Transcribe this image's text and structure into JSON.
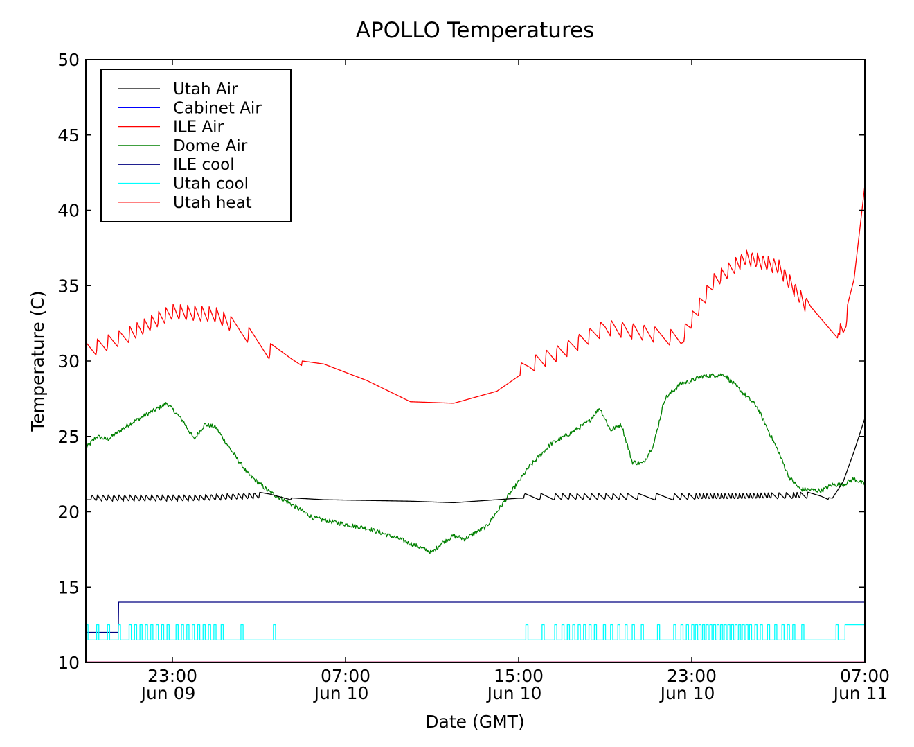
{
  "chart_data": {
    "type": "line",
    "title": "APOLLO Temperatures",
    "xlabel": "Date (GMT)",
    "ylabel": "Temperature (C)",
    "ylim": [
      10,
      50
    ],
    "xlim": [
      "2012-06-09T19:00",
      "2012-06-11T07:00"
    ],
    "yticks": [
      10,
      15,
      20,
      25,
      30,
      35,
      40,
      45,
      50
    ],
    "xticks": [
      {
        "t": "2012-06-09T23:00",
        "time": "23:00",
        "date": "Jun 09"
      },
      {
        "t": "2012-06-10T07:00",
        "time": "07:00",
        "date": "Jun 10"
      },
      {
        "t": "2012-06-10T15:00",
        "time": "15:00",
        "date": "Jun 10"
      },
      {
        "t": "2012-06-10T23:00",
        "time": "23:00",
        "date": "Jun 10"
      },
      {
        "t": "2012-06-11T07:00",
        "time": "07:00",
        "date": "Jun 11"
      }
    ],
    "grid": false,
    "legend_position": "upper-left",
    "series": [
      {
        "name": "Utah Air",
        "color": "#000000",
        "style": "sawtooth",
        "x": [
          "2012-06-09T19:00",
          "2012-06-10T00:00",
          "2012-06-10T03:30",
          "2012-06-10T06:00",
          "2012-06-10T10:00",
          "2012-06-10T12:00",
          "2012-06-10T15:00",
          "2012-06-10T20:00",
          "2012-06-11T01:00",
          "2012-06-11T05:00",
          "2012-06-11T05:30",
          "2012-06-11T06:00",
          "2012-06-11T06:30",
          "2012-06-11T07:00"
        ],
        "y": [
          20.8,
          20.8,
          21.0,
          20.8,
          20.7,
          20.6,
          20.9,
          20.9,
          20.9,
          21.0,
          20.9,
          22.0,
          24.0,
          26.2
        ],
        "events": [
          "2012-06-09T19:15",
          "2012-06-09T19:30",
          "2012-06-09T19:45",
          "2012-06-09T20:00",
          "2012-06-09T20:15",
          "2012-06-09T20:30",
          "2012-06-09T20:45",
          "2012-06-09T21:00",
          "2012-06-09T21:15",
          "2012-06-09T21:30",
          "2012-06-09T21:45",
          "2012-06-09T22:00",
          "2012-06-09T22:15",
          "2012-06-09T22:30",
          "2012-06-09T22:45",
          "2012-06-09T23:00",
          "2012-06-09T23:15",
          "2012-06-09T23:30",
          "2012-06-09T23:45",
          "2012-06-10T00:00",
          "2012-06-10T00:15",
          "2012-06-10T00:30",
          "2012-06-10T00:45",
          "2012-06-10T01:00",
          "2012-06-10T01:15",
          "2012-06-10T01:30",
          "2012-06-10T01:45",
          "2012-06-10T02:00",
          "2012-06-10T02:15",
          "2012-06-10T02:30",
          "2012-06-10T02:45",
          "2012-06-10T03:00",
          "2012-06-10T15:15",
          "2012-06-10T16:00",
          "2012-06-10T16:40",
          "2012-06-10T17:00",
          "2012-06-10T17:20",
          "2012-06-10T17:40",
          "2012-06-10T18:00",
          "2012-06-10T18:20",
          "2012-06-10T18:40",
          "2012-06-10T19:00",
          "2012-06-10T19:20",
          "2012-06-10T19:40",
          "2012-06-10T20:00",
          "2012-06-10T20:30",
          "2012-06-10T21:20",
          "2012-06-10T22:10",
          "2012-06-10T22:30",
          "2012-06-10T22:50",
          "2012-06-10T23:10",
          "2012-06-10T23:20",
          "2012-06-10T23:30",
          "2012-06-10T23:40",
          "2012-06-10T23:50",
          "2012-06-11T00:00",
          "2012-06-11T00:10",
          "2012-06-11T00:20",
          "2012-06-11T00:30",
          "2012-06-11T00:40",
          "2012-06-11T00:50",
          "2012-06-11T01:00",
          "2012-06-11T01:10",
          "2012-06-11T01:20",
          "2012-06-11T01:30",
          "2012-06-11T01:40",
          "2012-06-11T01:50",
          "2012-06-11T02:00",
          "2012-06-11T02:10",
          "2012-06-11T02:20",
          "2012-06-11T02:30",
          "2012-06-11T02:40",
          "2012-06-11T03:00",
          "2012-06-11T03:20",
          "2012-06-11T03:40",
          "2012-06-11T03:50",
          "2012-06-11T04:00",
          "2012-06-11T04:20"
        ],
        "amplitude": 0.45
      },
      {
        "name": "Cabinet Air",
        "color": "#0000ff",
        "style": "line",
        "x": [
          "2012-06-09T19:00",
          "2012-06-11T07:00"
        ],
        "y": [
          10.0,
          10.0
        ]
      },
      {
        "name": "ILE Air",
        "color": "#ff0000",
        "style": "sawtooth",
        "x": [
          "2012-06-09T19:00",
          "2012-06-09T21:00",
          "2012-06-09T23:00",
          "2012-06-10T01:00",
          "2012-06-10T02:30",
          "2012-06-10T03:30",
          "2012-06-10T04:30",
          "2012-06-10T06:00",
          "2012-06-10T08:00",
          "2012-06-10T10:00",
          "2012-06-10T12:00",
          "2012-06-10T14:00",
          "2012-06-10T15:30",
          "2012-06-10T17:00",
          "2012-06-10T19:00",
          "2012-06-10T21:00",
          "2012-06-10T22:30",
          "2012-06-11T00:00",
          "2012-06-11T01:30",
          "2012-06-11T03:00",
          "2012-06-11T04:30",
          "2012-06-11T06:00",
          "2012-06-11T06:30",
          "2012-06-11T07:00"
        ],
        "y": [
          30.4,
          31.5,
          33.0,
          32.8,
          31.5,
          30.4,
          30.1,
          29.8,
          28.7,
          27.3,
          27.2,
          28.0,
          29.5,
          30.4,
          32.0,
          31.6,
          31.2,
          35.0,
          36.6,
          36.0,
          33.0,
          31.6,
          35.0,
          41.8
        ],
        "events": [
          "2012-06-09T19:00",
          "2012-06-09T19:30",
          "2012-06-09T20:00",
          "2012-06-09T20:30",
          "2012-06-09T21:00",
          "2012-06-09T21:20",
          "2012-06-09T21:40",
          "2012-06-09T22:00",
          "2012-06-09T22:20",
          "2012-06-09T22:40",
          "2012-06-09T23:00",
          "2012-06-09T23:20",
          "2012-06-09T23:40",
          "2012-06-10T00:00",
          "2012-06-10T00:20",
          "2012-06-10T00:40",
          "2012-06-10T01:00",
          "2012-06-10T01:20",
          "2012-06-10T01:40",
          "2012-06-10T02:30",
          "2012-06-10T03:30",
          "2012-06-10T15:05",
          "2012-06-10T15:45",
          "2012-06-10T16:15",
          "2012-06-10T16:45",
          "2012-06-10T17:15",
          "2012-06-10T17:45",
          "2012-06-10T18:15",
          "2012-06-10T18:45",
          "2012-06-10T19:15",
          "2012-06-10T19:45",
          "2012-06-10T20:15",
          "2012-06-10T20:45",
          "2012-06-10T21:15",
          "2012-06-10T22:00",
          "2012-06-10T22:40",
          "2012-06-10T23:00",
          "2012-06-10T23:20",
          "2012-06-10T23:40",
          "2012-06-11T00:00",
          "2012-06-11T00:20",
          "2012-06-11T00:40",
          "2012-06-11T01:00",
          "2012-06-11T01:15",
          "2012-06-11T01:30",
          "2012-06-11T01:45",
          "2012-06-11T02:00",
          "2012-06-11T02:15",
          "2012-06-11T02:30",
          "2012-06-11T02:45",
          "2012-06-11T03:00",
          "2012-06-11T03:15",
          "2012-06-11T03:30",
          "2012-06-11T03:45",
          "2012-06-11T04:00",
          "2012-06-11T04:15",
          "2012-06-11T05:50",
          "2012-06-11T06:10"
        ],
        "amplitude": 1.1
      },
      {
        "name": "Dome Air",
        "color": "#008000",
        "style": "noisy",
        "x": [
          "2012-06-09T19:00",
          "2012-06-09T19:30",
          "2012-06-09T20:00",
          "2012-06-09T21:00",
          "2012-06-09T22:00",
          "2012-06-09T22:45",
          "2012-06-09T23:30",
          "2012-06-10T00:00",
          "2012-06-10T00:30",
          "2012-06-10T01:00",
          "2012-06-10T01:45",
          "2012-06-10T02:30",
          "2012-06-10T03:30",
          "2012-06-10T04:30",
          "2012-06-10T05:30",
          "2012-06-10T06:30",
          "2012-06-10T08:00",
          "2012-06-10T09:30",
          "2012-06-10T10:30",
          "2012-06-10T11:00",
          "2012-06-10T11:30",
          "2012-06-10T12:00",
          "2012-06-10T12:30",
          "2012-06-10T13:30",
          "2012-06-10T14:30",
          "2012-06-10T15:30",
          "2012-06-10T16:30",
          "2012-06-10T17:30",
          "2012-06-10T18:15",
          "2012-06-10T18:45",
          "2012-06-10T19:15",
          "2012-06-10T19:45",
          "2012-06-10T20:15",
          "2012-06-10T20:45",
          "2012-06-10T21:15",
          "2012-06-10T21:45",
          "2012-06-10T22:30",
          "2012-06-10T23:00",
          "2012-06-10T23:30",
          "2012-06-11T00:30",
          "2012-06-11T01:00",
          "2012-06-11T02:00",
          "2012-06-11T03:00",
          "2012-06-11T03:30",
          "2012-06-11T04:00",
          "2012-06-11T05:00",
          "2012-06-11T05:30",
          "2012-06-11T06:00",
          "2012-06-11T06:30",
          "2012-06-11T07:00"
        ],
        "y": [
          24.2,
          25.0,
          24.8,
          25.8,
          26.6,
          27.2,
          26.0,
          24.8,
          25.8,
          25.6,
          24.0,
          22.5,
          21.3,
          20.5,
          19.6,
          19.3,
          18.9,
          18.2,
          17.6,
          17.3,
          18.0,
          18.4,
          18.2,
          19.0,
          21.0,
          23.0,
          24.5,
          25.3,
          26.0,
          26.9,
          25.4,
          25.8,
          23.3,
          23.2,
          24.5,
          27.5,
          28.5,
          28.7,
          29.0,
          29.1,
          28.4,
          27.0,
          24.0,
          22.3,
          21.5,
          21.4,
          21.8,
          21.8,
          22.2,
          21.8
        ],
        "noise": 0.15
      },
      {
        "name": "ILE cool",
        "color": "#000080",
        "style": "step",
        "x": [
          "2012-06-09T19:00",
          "2012-06-09T20:30",
          "2012-06-09T20:31",
          "2012-06-11T07:00"
        ],
        "y": [
          12.0,
          12.0,
          14.0,
          14.0
        ]
      },
      {
        "name": "Utah cool",
        "color": "#00ffff",
        "style": "pulses",
        "base": 11.5,
        "high": 12.5,
        "pulse_minutes": 6,
        "events": [
          "2012-06-09T19:00",
          "2012-06-09T19:30",
          "2012-06-09T20:00",
          "2012-06-09T20:30",
          "2012-06-09T21:00",
          "2012-06-09T21:15",
          "2012-06-09T21:30",
          "2012-06-09T21:45",
          "2012-06-09T22:00",
          "2012-06-09T22:15",
          "2012-06-09T22:30",
          "2012-06-09T22:45",
          "2012-06-09T23:10",
          "2012-06-09T23:25",
          "2012-06-09T23:40",
          "2012-06-09T23:55",
          "2012-06-10T00:10",
          "2012-06-10T00:25",
          "2012-06-10T00:40",
          "2012-06-10T00:55",
          "2012-06-10T01:15",
          "2012-06-10T02:10",
          "2012-06-10T03:40",
          "2012-06-10T15:20",
          "2012-06-10T16:05",
          "2012-06-10T16:40",
          "2012-06-10T17:00",
          "2012-06-10T17:15",
          "2012-06-10T17:30",
          "2012-06-10T17:45",
          "2012-06-10T18:00",
          "2012-06-10T18:15",
          "2012-06-10T18:30",
          "2012-06-10T18:55",
          "2012-06-10T19:15",
          "2012-06-10T19:35",
          "2012-06-10T19:55",
          "2012-06-10T20:15",
          "2012-06-10T20:40",
          "2012-06-10T21:25",
          "2012-06-10T22:10",
          "2012-06-10T22:30",
          "2012-06-10T22:45",
          "2012-06-10T23:00",
          "2012-06-10T23:10",
          "2012-06-10T23:20",
          "2012-06-10T23:30",
          "2012-06-10T23:40",
          "2012-06-10T23:50",
          "2012-06-11T00:00",
          "2012-06-11T00:10",
          "2012-06-11T00:20",
          "2012-06-11T00:30",
          "2012-06-11T00:40",
          "2012-06-11T00:50",
          "2012-06-11T01:00",
          "2012-06-11T01:10",
          "2012-06-11T01:20",
          "2012-06-11T01:30",
          "2012-06-11T01:40",
          "2012-06-11T01:55",
          "2012-06-11T02:10",
          "2012-06-11T02:30",
          "2012-06-11T02:50",
          "2012-06-11T03:10",
          "2012-06-11T03:25",
          "2012-06-11T03:40",
          "2012-06-11T04:05",
          "2012-06-11T05:40"
        ],
        "final_step": "2012-06-11T06:05"
      },
      {
        "name": "Utah heat",
        "color": "#ff0000",
        "style": "line",
        "x": [
          "2012-06-09T19:00",
          "2012-06-11T07:00"
        ],
        "y": [
          10.0,
          10.0
        ]
      }
    ]
  }
}
